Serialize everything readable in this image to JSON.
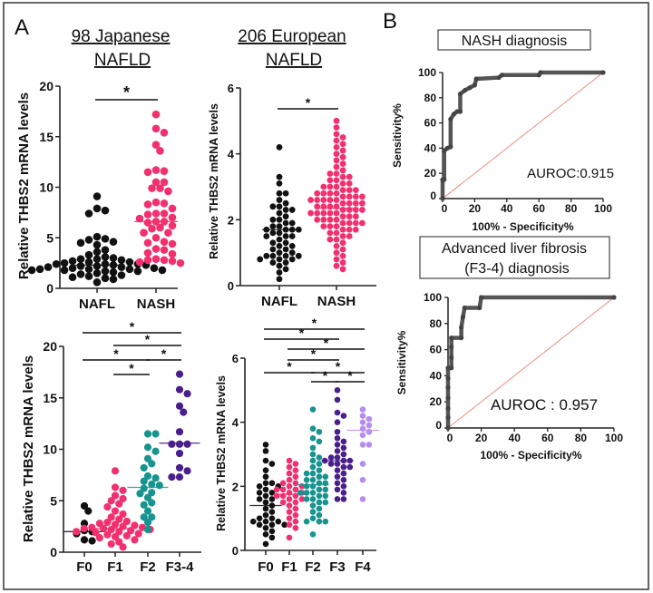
{
  "panel_labels": {
    "a": "A",
    "b": "B"
  },
  "column_titles": {
    "japanese": {
      "line1": "98 Japanese",
      "line2": "NAFLD"
    },
    "european": {
      "line1": "206 European",
      "line2": "NAFLD"
    }
  },
  "roc_titles": {
    "nash": "NASH diagnosis",
    "fibrosis_line1": "Advanced liver fibrosis",
    "fibrosis_line2": "(F3-4) diagnosis"
  },
  "colors": {
    "black": "#111111",
    "pink": "#f2306f",
    "teal": "#17948f",
    "purple": "#4a1f8c",
    "lavender": "#b68ef0",
    "roc_curve": "#555555",
    "reference_line": "#f08070"
  },
  "chart_data": [
    {
      "type": "scatter",
      "ylabel": "Relative THBS2 mRNA levels",
      "ylim": [
        0,
        20
      ],
      "yticks": [
        "0",
        "5",
        "10",
        "15",
        "20"
      ],
      "categories": [
        "NAFL",
        "NASH"
      ],
      "series": [
        {
          "category": "NAFL",
          "color": "#111111",
          "median": 2.3,
          "values": [
            9.1,
            7.9,
            7.7,
            7.4,
            5.1,
            4.9,
            4.8,
            4.6,
            4.5,
            4.3,
            3.8,
            3.6,
            3.3,
            3.1,
            3.0,
            2.9,
            2.9,
            2.8,
            2.7,
            2.6,
            2.6,
            2.5,
            2.4,
            2.4,
            2.3,
            2.3,
            2.2,
            2.2,
            2.1,
            2.1,
            2.0,
            2.0,
            1.9,
            1.9,
            1.8,
            1.8,
            1.8,
            1.7,
            1.7,
            1.6,
            1.5,
            1.4,
            1.3,
            1.2,
            1.1,
            1.0,
            0.9,
            0.6,
            1.9,
            2.4
          ]
        },
        {
          "category": "NASH",
          "color": "#f2306f",
          "median": 6.6,
          "values": [
            17.2,
            15.8,
            15.4,
            14.2,
            13.6,
            11.7,
            11.6,
            11.5,
            10.5,
            10.5,
            9.9,
            9.9,
            9.6,
            8.5,
            8.4,
            8.3,
            7.9,
            7.4,
            7.4,
            7.3,
            7.0,
            6.9,
            6.6,
            6.6,
            6.5,
            6.2,
            6.0,
            5.9,
            5.5,
            5.5,
            5.0,
            4.6,
            4.5,
            4.4,
            3.9,
            3.8,
            3.5,
            3.4,
            2.9,
            2.8,
            2.8,
            2.7,
            2.6,
            2.5
          ]
        }
      ],
      "significance": [
        {
          "from": "NAFL",
          "to": "NASH",
          "label": "*"
        }
      ]
    },
    {
      "type": "scatter",
      "ylabel": "Relative THBS2 mRNA levels",
      "ylim": [
        0,
        6
      ],
      "yticks": [
        "0",
        "2",
        "4",
        "6"
      ],
      "categories": [
        "NAFL",
        "NASH"
      ],
      "series": [
        {
          "category": "NAFL",
          "color": "#111111",
          "median": 1.7,
          "values": [
            4.2,
            3.3,
            3.1,
            2.8,
            2.8,
            2.5,
            2.4,
            2.4,
            2.3,
            2.3,
            2.2,
            2.1,
            2.0,
            2.0,
            1.9,
            1.9,
            1.8,
            1.8,
            1.7,
            1.7,
            1.7,
            1.7,
            1.6,
            1.5,
            1.5,
            1.4,
            1.3,
            1.3,
            1.2,
            1.1,
            1.1,
            1.0,
            1.0,
            0.9,
            0.9,
            0.9,
            0.9,
            0.8,
            0.8,
            0.8,
            0.7,
            0.7,
            0.6,
            0.5,
            0.4,
            0.2,
            1.6,
            1.2,
            2.6,
            1.5
          ]
        },
        {
          "category": "NASH",
          "color": "#f2306f",
          "median": 2.35,
          "values": [
            5.0,
            4.8,
            4.6,
            4.5,
            4.4,
            4.3,
            4.2,
            4.1,
            4.0,
            3.9,
            3.8,
            3.7,
            3.6,
            3.5,
            3.4,
            3.3,
            3.3,
            3.2,
            3.2,
            3.1,
            3.1,
            3.0,
            3.0,
            3.0,
            2.9,
            2.9,
            2.9,
            2.8,
            2.8,
            2.8,
            2.7,
            2.7,
            2.7,
            2.7,
            2.6,
            2.6,
            2.6,
            2.6,
            2.5,
            2.5,
            2.5,
            2.5,
            2.4,
            2.4,
            2.4,
            2.4,
            2.3,
            2.3,
            2.3,
            2.3,
            2.2,
            2.2,
            2.2,
            2.2,
            2.1,
            2.1,
            2.1,
            2.0,
            2.0,
            2.0,
            2.0,
            1.9,
            1.9,
            1.9,
            1.8,
            1.8,
            1.8,
            1.7,
            1.7,
            1.7,
            1.6,
            1.6,
            1.5,
            1.5,
            1.4,
            1.4,
            1.3,
            1.2,
            1.1,
            1.0,
            0.9,
            0.8,
            0.7,
            0.6,
            0.5,
            3.4,
            2.8,
            2.6,
            2.2,
            1.9
          ]
        }
      ],
      "significance": [
        {
          "from": "NAFL",
          "to": "NASH",
          "label": "*"
        }
      ]
    },
    {
      "type": "scatter",
      "ylabel": "Relative THBS2 mRNA levels",
      "ylim": [
        0,
        20
      ],
      "yticks": [
        "0",
        "5",
        "10",
        "15",
        "20"
      ],
      "categories": [
        "F0",
        "F1",
        "F2",
        "F3-4"
      ],
      "series": [
        {
          "category": "F0",
          "color": "#111111",
          "median": 2.0,
          "values": [
            4.5,
            4.0,
            2.8,
            2.1,
            2.0,
            1.8,
            1.2,
            1.1
          ]
        },
        {
          "category": "F1",
          "color": "#f2306f",
          "median": 2.3,
          "values": [
            7.9,
            6.3,
            6.0,
            5.5,
            5.2,
            5.0,
            4.7,
            4.4,
            4.0,
            3.7,
            3.4,
            3.2,
            3.0,
            2.9,
            2.8,
            2.7,
            2.6,
            2.5,
            2.4,
            2.4,
            2.3,
            2.3,
            2.2,
            2.2,
            2.1,
            2.0,
            2.0,
            1.9,
            1.8,
            1.7,
            1.6,
            1.5,
            1.4,
            1.2,
            1.0,
            0.8,
            0.5
          ]
        },
        {
          "category": "F2",
          "color": "#17948f",
          "median": 6.3,
          "values": [
            11.5,
            11.5,
            9.8,
            10.2,
            9.1,
            8.6,
            8.2,
            7.4,
            7.2,
            6.9,
            6.6,
            6.5,
            6.2,
            5.8,
            5.7,
            5.3,
            4.8,
            4.6,
            4.0,
            3.4,
            3.4,
            2.9,
            2.2
          ]
        },
        {
          "category": "F3-4",
          "color": "#4a1f8c",
          "median": 10.6,
          "values": [
            17.3,
            15.8,
            15.4,
            14.2,
            13.6,
            11.7,
            10.5,
            10.5,
            10.5,
            9.6,
            8.2,
            7.9,
            7.3,
            7.3
          ]
        }
      ],
      "significance": [
        {
          "from": "F0",
          "to": "F3-4",
          "label": "*"
        },
        {
          "from": "F1",
          "to": "F3-4",
          "label": "*"
        },
        {
          "from": "F0",
          "to": "F2",
          "label": "*"
        },
        {
          "from": "F2",
          "to": "F3-4",
          "label": "*"
        },
        {
          "from": "F1",
          "to": "F2",
          "label": "*"
        }
      ]
    },
    {
      "type": "scatter",
      "ylabel": "Relative THBS2 mRNA levels",
      "ylim": [
        0,
        6
      ],
      "yticks": [
        "0",
        "2",
        "4",
        "6"
      ],
      "categories": [
        "F0",
        "F1",
        "F2",
        "F3",
        "F4"
      ],
      "series": [
        {
          "category": "F0",
          "color": "#111111",
          "median": 1.4,
          "values": [
            3.3,
            3.1,
            2.8,
            2.7,
            2.5,
            2.3,
            2.1,
            2.0,
            2.0,
            1.9,
            1.8,
            1.8,
            1.7,
            1.6,
            1.5,
            1.4,
            1.3,
            1.2,
            1.1,
            1.0,
            1.0,
            0.9,
            0.9,
            0.8,
            0.8,
            0.8,
            0.7,
            0.6,
            0.5,
            0.4,
            0.2,
            1.6,
            2.1,
            0.9
          ]
        },
        {
          "category": "F1",
          "color": "#f2306f",
          "median": 1.75,
          "values": [
            2.8,
            2.7,
            2.6,
            2.5,
            2.4,
            2.3,
            2.2,
            2.1,
            2.0,
            2.0,
            1.9,
            1.9,
            1.8,
            1.8,
            1.7,
            1.7,
            1.6,
            1.6,
            1.5,
            1.5,
            1.4,
            1.3,
            1.2,
            1.1,
            1.0,
            0.9,
            0.8,
            0.7,
            0.4,
            2.1,
            1.9,
            1.7
          ]
        },
        {
          "category": "F2",
          "color": "#17948f",
          "median": 2.05,
          "values": [
            4.4,
            3.8,
            3.7,
            3.5,
            3.4,
            3.2,
            3.0,
            2.9,
            2.8,
            2.7,
            2.6,
            2.5,
            2.4,
            2.4,
            2.3,
            2.2,
            2.2,
            2.1,
            2.1,
            2.0,
            2.0,
            1.9,
            1.9,
            1.8,
            1.8,
            1.7,
            1.7,
            1.6,
            1.6,
            1.5,
            1.5,
            1.4,
            1.3,
            1.2,
            1.1,
            1.0,
            0.9,
            0.9,
            0.9,
            0.5,
            2.3,
            1.8
          ]
        },
        {
          "category": "F3",
          "color": "#4a1f8c",
          "median": 2.8,
          "values": [
            5.0,
            4.7,
            4.3,
            4.2,
            4.0,
            3.7,
            3.5,
            3.4,
            3.3,
            3.2,
            3.1,
            3.0,
            2.9,
            2.9,
            2.8,
            2.8,
            2.7,
            2.7,
            2.6,
            2.5,
            2.4,
            2.3,
            2.2,
            2.1,
            2.0,
            1.9,
            1.8,
            1.6,
            1.6,
            2.6,
            2.8
          ]
        },
        {
          "category": "F4",
          "color": "#b68ef0",
          "median": 3.75,
          "values": [
            4.4,
            4.2,
            4.1,
            4.0,
            3.9,
            3.8,
            3.7,
            3.6,
            3.3,
            3.3,
            2.7,
            2.2,
            1.6
          ]
        }
      ],
      "significance": [
        {
          "from": "F0",
          "to": "F4",
          "label": "*"
        },
        {
          "from": "F0",
          "to": "F3",
          "label": "*"
        },
        {
          "from": "F1",
          "to": "F4",
          "label": "*"
        },
        {
          "from": "F1",
          "to": "F3",
          "label": "*"
        },
        {
          "from": "F0",
          "to": "F2",
          "label": "*"
        },
        {
          "from": "F2",
          "to": "F4",
          "label": "*"
        },
        {
          "from": "F2",
          "to": "F3",
          "label": "*"
        },
        {
          "from": "F3",
          "to": "F4",
          "label": "*"
        }
      ]
    },
    {
      "type": "line",
      "title": "NASH diagnosis",
      "xlabel": "100% - Specificity%",
      "ylabel": "Sensitivity%",
      "xlim": [
        0,
        100
      ],
      "ylim": [
        0,
        100
      ],
      "xticks": [
        "0",
        "20",
        "40",
        "60",
        "80",
        "100"
      ],
      "yticks": [
        "0",
        "20",
        "40",
        "60",
        "80",
        "100"
      ],
      "annotation": "AUROC:0.915",
      "x": [
        0,
        0,
        1,
        1,
        3,
        5,
        5,
        7,
        9,
        11,
        11,
        14,
        17,
        20,
        21,
        35,
        37,
        60,
        61,
        100
      ],
      "y": [
        0,
        15,
        15,
        38,
        40,
        41,
        63,
        67,
        69,
        69,
        83,
        86,
        88,
        90,
        95,
        96,
        98,
        98,
        100,
        100
      ]
    },
    {
      "type": "line",
      "title": "Advanced liver fibrosis (F3-4) diagnosis",
      "xlabel": "100% - Specificity%",
      "ylabel": "Sensitivity%",
      "xlim": [
        0,
        100
      ],
      "ylim": [
        0,
        100
      ],
      "xticks": [
        "0",
        "20",
        "40",
        "60",
        "80",
        "100"
      ],
      "yticks": [
        "0",
        "20",
        "40",
        "60",
        "80",
        "100"
      ],
      "annotation": "AUROC : 0.957",
      "x": [
        0,
        0,
        0,
        0,
        0,
        0,
        0,
        2,
        2,
        2,
        2,
        8,
        8,
        9,
        10,
        19,
        20,
        100
      ],
      "y": [
        0,
        8,
        15,
        23,
        31,
        38,
        46,
        46,
        54,
        62,
        69,
        69,
        77,
        85,
        92,
        92,
        100,
        100
      ]
    }
  ]
}
